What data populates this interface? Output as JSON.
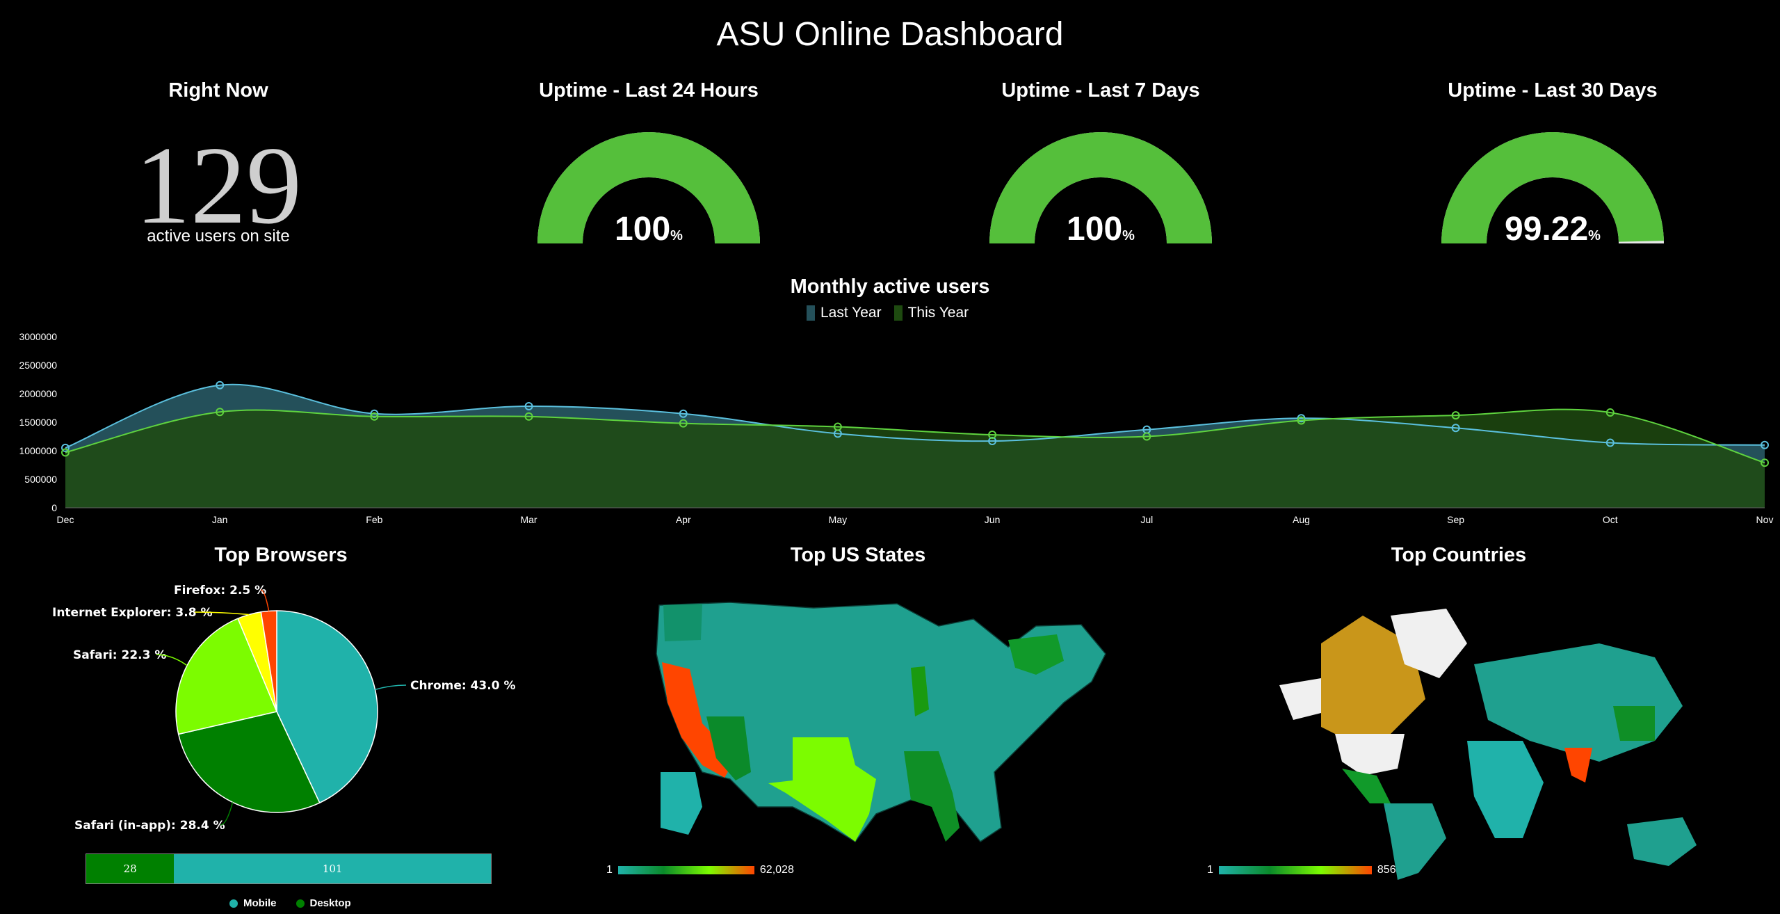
{
  "header": {
    "title": "ASU Online Dashboard"
  },
  "right_now": {
    "title": "Right Now",
    "value": "129",
    "caption": "active users on site"
  },
  "gauges": [
    {
      "title": "Uptime - Last 24 Hours",
      "value": "100",
      "unit": "%",
      "fraction": 1.0
    },
    {
      "title": "Uptime - Last 7 Days",
      "value": "100",
      "unit": "%",
      "fraction": 1.0
    },
    {
      "title": "Uptime - Last 30 Days",
      "value": "99.22",
      "unit": "%",
      "fraction": 0.9922
    }
  ],
  "colors": {
    "gauge_fill": "#55bf3b",
    "gauge_track": "#e6e6e6",
    "last_year_line": "#5bc0de",
    "last_year_fill": "#24505a",
    "this_year_line": "#5fd33f",
    "this_year_fill": "#1e4a10",
    "chrome": "#20b2aa",
    "safari_inapp": "#008000",
    "safari": "#7cfc00",
    "ie": "#ffff00",
    "firefox": "#ff4500",
    "mobile": "#20b2aa",
    "desktop": "#008000"
  },
  "monthly_chart": {
    "title": "Monthly active users",
    "legend": [
      "Last Year",
      "This Year"
    ],
    "chart_data": {
      "type": "area",
      "categories": [
        "Dec",
        "Jan",
        "Feb",
        "Mar",
        "Apr",
        "May",
        "Jun",
        "Jul",
        "Aug",
        "Sep",
        "Oct",
        "Nov"
      ],
      "ylim": [
        0,
        3000000
      ],
      "yticks": [
        "0",
        "500000",
        "1000000",
        "1500000",
        "2000000",
        "2500000",
        "3000000"
      ],
      "series": [
        {
          "name": "Last Year",
          "values": [
            1050000,
            2150000,
            1650000,
            1780000,
            1650000,
            1300000,
            1170000,
            1370000,
            1570000,
            1400000,
            1140000,
            1100000
          ]
        },
        {
          "name": "This Year",
          "values": [
            970000,
            1680000,
            1600000,
            1600000,
            1480000,
            1420000,
            1280000,
            1250000,
            1530000,
            1620000,
            1670000,
            790000
          ]
        }
      ]
    }
  },
  "browsers": {
    "title": "Top Browsers",
    "chart_data": {
      "type": "pie",
      "slices": [
        {
          "name": "Chrome",
          "label": "Chrome: 43.0 %",
          "value": 43.0,
          "color": "#20b2aa"
        },
        {
          "name": "Safari (in-app)",
          "label": "Safari (in-app): 28.4 %",
          "value": 28.4,
          "color": "#008000"
        },
        {
          "name": "Safari",
          "label": "Safari: 22.3 %",
          "value": 22.3,
          "color": "#7cfc00"
        },
        {
          "name": "Internet Explorer",
          "label": "Internet Explorer: 3.8 %",
          "value": 3.8,
          "color": "#ffff00"
        },
        {
          "name": "Firefox",
          "label": "Firefox: 2.5 %",
          "value": 2.5,
          "color": "#ff4500"
        }
      ]
    },
    "device_bar": {
      "chart_data": {
        "type": "bar",
        "series": [
          {
            "name": "Desktop",
            "values": [
              28
            ]
          },
          {
            "name": "Mobile",
            "values": [
              101
            ]
          }
        ]
      },
      "desktop_label": "28",
      "mobile_label": "101",
      "legend": [
        "Mobile",
        "Desktop"
      ]
    }
  },
  "us_states": {
    "title": "Top US States",
    "scale_min": "1",
    "scale_max": "62,028"
  },
  "countries": {
    "title": "Top Countries",
    "scale_min": "1",
    "scale_max": "856"
  }
}
